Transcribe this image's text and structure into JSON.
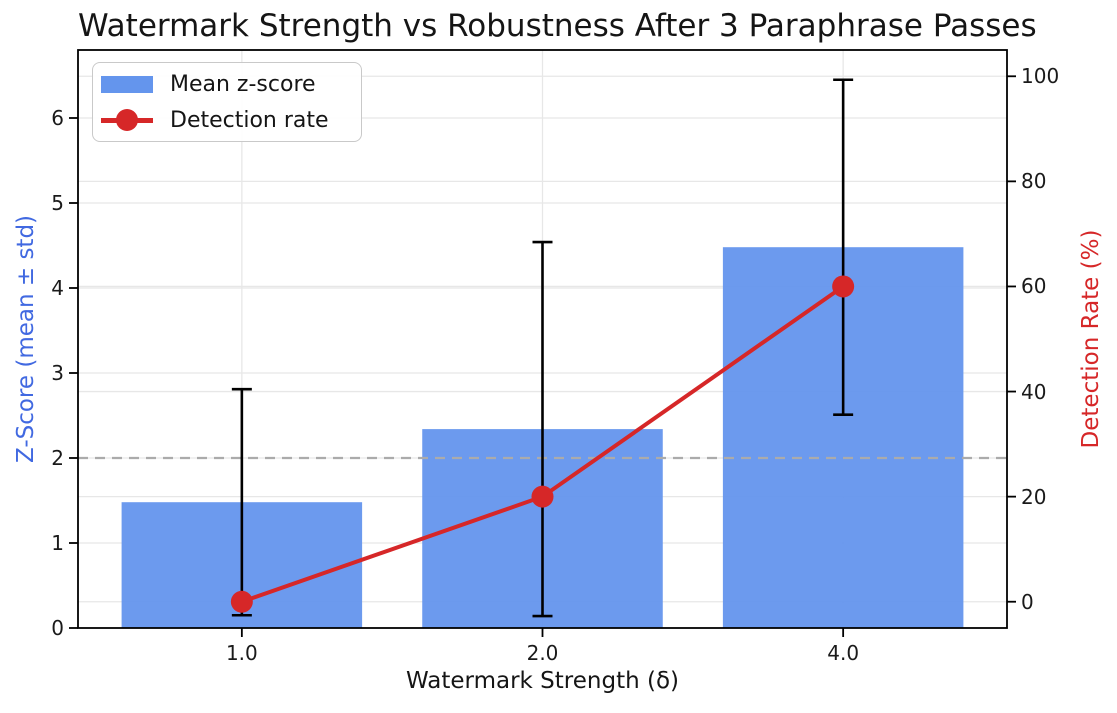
{
  "chart_data": {
    "type": "bar",
    "title": "Watermark Strength vs Robustness After 3 Paraphrase Passes",
    "xlabel": "Watermark Strength (δ)",
    "ylabel_left": "Z-Score (mean ± std)",
    "ylabel_right": "Detection Rate (%)",
    "categories": [
      "1.0",
      "2.0",
      "4.0"
    ],
    "series": [
      {
        "name": "Mean z-score",
        "type": "bar",
        "axis": "left",
        "color": "#6495ED",
        "values": [
          1.48,
          2.34,
          4.48
        ],
        "std": [
          1.33,
          2.2,
          1.97
        ]
      },
      {
        "name": "Detection rate",
        "type": "line",
        "axis": "right",
        "color": "#D62728",
        "values": [
          0,
          20,
          60
        ]
      }
    ],
    "threshold": {
      "axis": "left",
      "value": 2.0,
      "color": "#ABABAB",
      "style": "dashed"
    },
    "axes": {
      "left": {
        "ticks": [
          0,
          1,
          2,
          3,
          4,
          5,
          6
        ],
        "range": [
          0,
          6.8
        ],
        "label_color": "#4169E1"
      },
      "right": {
        "ticks": [
          0,
          20,
          40,
          60,
          80,
          100
        ],
        "range": [
          -5,
          105
        ],
        "label_color": "#D62728"
      },
      "x": {
        "tick_labels": [
          "1.0",
          "2.0",
          "4.0"
        ]
      }
    },
    "legend": {
      "position": "upper-left",
      "items": [
        {
          "label": "Mean z-score",
          "marker": "bar",
          "color": "#6495ED"
        },
        {
          "label": "Detection rate",
          "marker": "line-dot",
          "color": "#D62728"
        }
      ]
    },
    "grid": true,
    "error_bar_color": "#000000",
    "spine_color": "#000000"
  }
}
